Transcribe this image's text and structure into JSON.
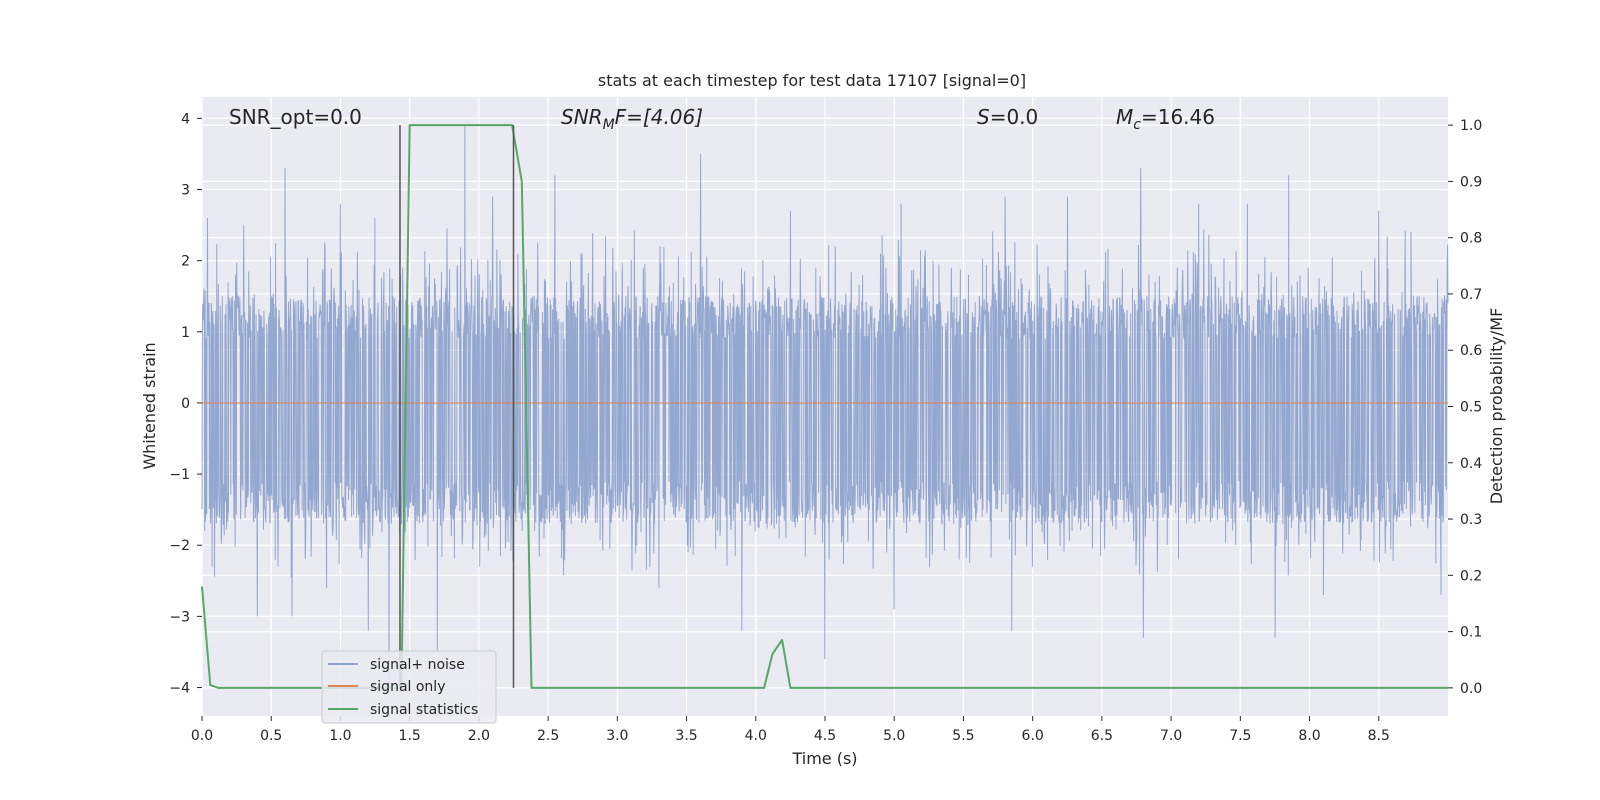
{
  "chart_data": {
    "type": "line",
    "title": "stats at each timestep for test data 17107 [signal=0]",
    "xlabel": "Time (s)",
    "ylabel_left": "Whitened strain",
    "ylabel_right": "Detection probability/MF",
    "xlim": [
      0.0,
      9.0
    ],
    "ylim_left": [
      -4.4,
      4.3
    ],
    "ylim_right": [
      -0.05,
      1.05
    ],
    "x_ticks": [
      "0.0",
      "0.5",
      "1.0",
      "1.5",
      "2.0",
      "2.5",
      "3.0",
      "3.5",
      "4.0",
      "4.5",
      "5.0",
      "5.5",
      "6.0",
      "6.5",
      "7.0",
      "7.5",
      "8.0",
      "8.5"
    ],
    "y_left_ticks": [
      "4",
      "3",
      "2",
      "1",
      "0",
      "−1",
      "−2",
      "−3",
      "−4"
    ],
    "y_right_ticks": [
      "1.0",
      "0.9",
      "0.8",
      "0.7",
      "0.6",
      "0.5",
      "0.4",
      "0.3",
      "0.2",
      "0.1",
      "0.0"
    ],
    "grid": true,
    "annotations": {
      "snr_opt": "SNR_opt=0.0",
      "snr_mf_main": "SNR",
      "snr_mf_sub": "M",
      "snr_mf_tail": "F=[4.06]",
      "s_main": "S",
      "s_tail": "=0.0",
      "mc_main": "M",
      "mc_sub": "c",
      "mc_tail": "=16.46"
    },
    "vertical_markers_x": [
      1.43,
      2.25
    ],
    "legend": {
      "position": "lower-left",
      "entries": [
        "signal+ noise",
        "signal only",
        "signal statistics"
      ]
    },
    "colors": {
      "noise": "#8fa3cc",
      "signal": "#dd8452",
      "stats": "#55a868",
      "background": "#eaeaf2",
      "grid": "#ffffff",
      "marker": "#555555"
    },
    "series": [
      {
        "name": "signal+ noise",
        "axis": "left",
        "kind": "noise",
        "x_range": [
          0.0,
          9.0
        ],
        "typical_range": [
          -1.7,
          1.5
        ],
        "peaks_upper": [
          [
            0.04,
            2.6
          ],
          [
            0.3,
            2.5
          ],
          [
            0.6,
            3.3
          ],
          [
            1.0,
            2.8
          ],
          [
            1.25,
            2.6
          ],
          [
            1.9,
            3.9
          ],
          [
            2.1,
            2.9
          ],
          [
            2.55,
            3.2
          ],
          [
            3.6,
            3.5
          ],
          [
            4.25,
            2.7
          ],
          [
            5.05,
            2.8
          ],
          [
            5.8,
            2.9
          ],
          [
            6.25,
            2.9
          ],
          [
            6.78,
            3.3
          ],
          [
            7.2,
            2.8
          ],
          [
            7.55,
            2.8
          ],
          [
            7.85,
            3.2
          ],
          [
            8.5,
            2.7
          ]
        ],
        "peaks_lower": [
          [
            0.4,
            -3.0
          ],
          [
            0.65,
            -3.0
          ],
          [
            0.9,
            -2.6
          ],
          [
            1.2,
            -3.2
          ],
          [
            1.35,
            -4.0
          ],
          [
            1.7,
            -3.5
          ],
          [
            3.3,
            -2.6
          ],
          [
            3.9,
            -3.2
          ],
          [
            4.5,
            -3.6
          ],
          [
            5.0,
            -2.9
          ],
          [
            5.85,
            -3.2
          ],
          [
            6.8,
            -3.3
          ],
          [
            7.75,
            -3.3
          ],
          [
            8.1,
            -2.7
          ],
          [
            8.95,
            -2.7
          ]
        ]
      },
      {
        "name": "signal only",
        "axis": "left",
        "x": [
          0.0,
          9.0
        ],
        "values": [
          0.0,
          0.0
        ]
      },
      {
        "name": "signal statistics",
        "axis": "right",
        "x": [
          0.0,
          0.06,
          0.12,
          0.2,
          1.38,
          1.44,
          1.5,
          2.24,
          2.31,
          2.38,
          2.45,
          4.06,
          4.12,
          4.19,
          4.25,
          9.0
        ],
        "values": [
          0.18,
          0.005,
          0.0,
          0.0,
          0.0,
          0.0,
          1.0,
          1.0,
          0.9,
          0.0,
          0.0,
          0.0,
          0.06,
          0.085,
          0.0,
          0.0
        ]
      }
    ]
  }
}
